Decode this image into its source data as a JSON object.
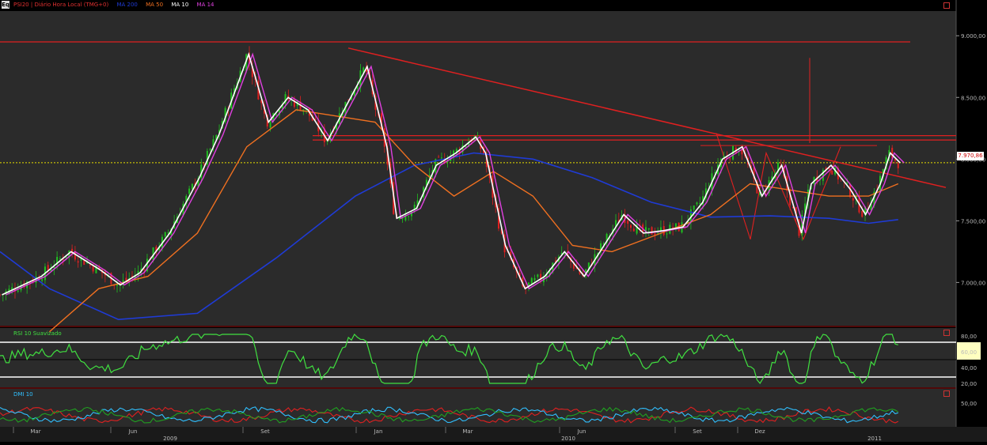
{
  "header": {
    "title": "PSI20 | Diário Hora Local (TMG+0)",
    "indicators": [
      {
        "label": "MA 200",
        "color": "#1f3bd6"
      },
      {
        "label": "MA 50",
        "color": "#f07020"
      },
      {
        "label": "MA 10",
        "color": "#ffffff"
      },
      {
        "label": "MA 14",
        "color": "#e040e0"
      }
    ]
  },
  "chart_data": [
    {
      "type": "candlestick",
      "title": "PSI20 | Diário Hora Local (TMG+0)",
      "yticks": [
        "9.000,00",
        "8.500,00",
        "8.000,00",
        "7.500,00",
        "7.000,00"
      ],
      "ytick_values": [
        9000,
        8500,
        8000,
        7500,
        7000
      ],
      "ylim": [
        6650,
        9200
      ],
      "last_price": "7.970,86",
      "last_price_value": 7970.86,
      "x_months": [
        "Mar",
        "Jun",
        "Set",
        "Jan",
        "Mar",
        "Jun",
        "Set",
        "Dez"
      ],
      "x_years": [
        "2009",
        "2010",
        "2011"
      ],
      "close_series": [
        {
          "t": 0,
          "v": 6900
        },
        {
          "t": 0.04,
          "v": 7050
        },
        {
          "t": 0.07,
          "v": 7250
        },
        {
          "t": 0.1,
          "v": 7100
        },
        {
          "t": 0.12,
          "v": 6980
        },
        {
          "t": 0.14,
          "v": 7080
        },
        {
          "t": 0.17,
          "v": 7400
        },
        {
          "t": 0.2,
          "v": 7850
        },
        {
          "t": 0.22,
          "v": 8200
        },
        {
          "t": 0.25,
          "v": 8850
        },
        {
          "t": 0.27,
          "v": 8300
        },
        {
          "t": 0.29,
          "v": 8500
        },
        {
          "t": 0.31,
          "v": 8400
        },
        {
          "t": 0.33,
          "v": 8150
        },
        {
          "t": 0.35,
          "v": 8450
        },
        {
          "t": 0.37,
          "v": 8750
        },
        {
          "t": 0.39,
          "v": 8100
        },
        {
          "t": 0.4,
          "v": 7520
        },
        {
          "t": 0.42,
          "v": 7600
        },
        {
          "t": 0.44,
          "v": 7950
        },
        {
          "t": 0.46,
          "v": 8050
        },
        {
          "t": 0.48,
          "v": 8180
        },
        {
          "t": 0.49,
          "v": 8050
        },
        {
          "t": 0.51,
          "v": 7300
        },
        {
          "t": 0.53,
          "v": 6950
        },
        {
          "t": 0.55,
          "v": 7050
        },
        {
          "t": 0.57,
          "v": 7250
        },
        {
          "t": 0.59,
          "v": 7050
        },
        {
          "t": 0.61,
          "v": 7300
        },
        {
          "t": 0.63,
          "v": 7550
        },
        {
          "t": 0.65,
          "v": 7400
        },
        {
          "t": 0.67,
          "v": 7420
        },
        {
          "t": 0.69,
          "v": 7450
        },
        {
          "t": 0.71,
          "v": 7650
        },
        {
          "t": 0.73,
          "v": 8000
        },
        {
          "t": 0.75,
          "v": 8100
        },
        {
          "t": 0.77,
          "v": 7700
        },
        {
          "t": 0.79,
          "v": 7950
        },
        {
          "t": 0.81,
          "v": 7400
        },
        {
          "t": 0.82,
          "v": 7800
        },
        {
          "t": 0.84,
          "v": 7950
        },
        {
          "t": 0.86,
          "v": 7750
        },
        {
          "t": 0.875,
          "v": 7550
        },
        {
          "t": 0.89,
          "v": 7800
        },
        {
          "t": 0.9,
          "v": 8050
        },
        {
          "t": 0.91,
          "v": 7970
        }
      ],
      "ma200_series": [
        {
          "t": 0,
          "v": 7250
        },
        {
          "t": 0.05,
          "v": 6950
        },
        {
          "t": 0.12,
          "v": 6700
        },
        {
          "t": 0.2,
          "v": 6750
        },
        {
          "t": 0.28,
          "v": 7200
        },
        {
          "t": 0.36,
          "v": 7700
        },
        {
          "t": 0.42,
          "v": 7950
        },
        {
          "t": 0.48,
          "v": 8050
        },
        {
          "t": 0.54,
          "v": 8000
        },
        {
          "t": 0.6,
          "v": 7850
        },
        {
          "t": 0.66,
          "v": 7650
        },
        {
          "t": 0.72,
          "v": 7530
        },
        {
          "t": 0.78,
          "v": 7540
        },
        {
          "t": 0.84,
          "v": 7520
        },
        {
          "t": 0.88,
          "v": 7480
        },
        {
          "t": 0.91,
          "v": 7510
        }
      ],
      "ma50_series": [
        {
          "t": 0.05,
          "v": 6600
        },
        {
          "t": 0.1,
          "v": 6950
        },
        {
          "t": 0.15,
          "v": 7050
        },
        {
          "t": 0.2,
          "v": 7400
        },
        {
          "t": 0.25,
          "v": 8100
        },
        {
          "t": 0.3,
          "v": 8400
        },
        {
          "t": 0.34,
          "v": 8350
        },
        {
          "t": 0.38,
          "v": 8300
        },
        {
          "t": 0.42,
          "v": 7950
        },
        {
          "t": 0.46,
          "v": 7700
        },
        {
          "t": 0.5,
          "v": 7900
        },
        {
          "t": 0.54,
          "v": 7700
        },
        {
          "t": 0.58,
          "v": 7300
        },
        {
          "t": 0.62,
          "v": 7250
        },
        {
          "t": 0.67,
          "v": 7400
        },
        {
          "t": 0.72,
          "v": 7550
        },
        {
          "t": 0.76,
          "v": 7800
        },
        {
          "t": 0.8,
          "v": 7750
        },
        {
          "t": 0.84,
          "v": 7700
        },
        {
          "t": 0.88,
          "v": 7700
        },
        {
          "t": 0.91,
          "v": 7800
        }
      ],
      "resistance_levels": [
        {
          "value": 8950
        },
        {
          "value": 8190
        },
        {
          "value": 8155
        }
      ],
      "current_level_line": 7970.86
    },
    {
      "type": "line",
      "title": "RSI 10 Suavizado",
      "yticks": [
        "80,00",
        "60,00",
        "40,00",
        "20,00"
      ],
      "ytick_values": [
        80,
        60,
        40,
        20
      ],
      "ylim": [
        15,
        90
      ],
      "band_lines": [
        72,
        50,
        28
      ],
      "last_value": 68
    },
    {
      "type": "line",
      "title": "DMI 10",
      "yticks": [
        "50,00"
      ],
      "ytick_values": [
        50
      ],
      "ylim": [
        0,
        80
      ],
      "series_colors": [
        "#e02020",
        "#30c0ff",
        "#20a020"
      ]
    }
  ]
}
